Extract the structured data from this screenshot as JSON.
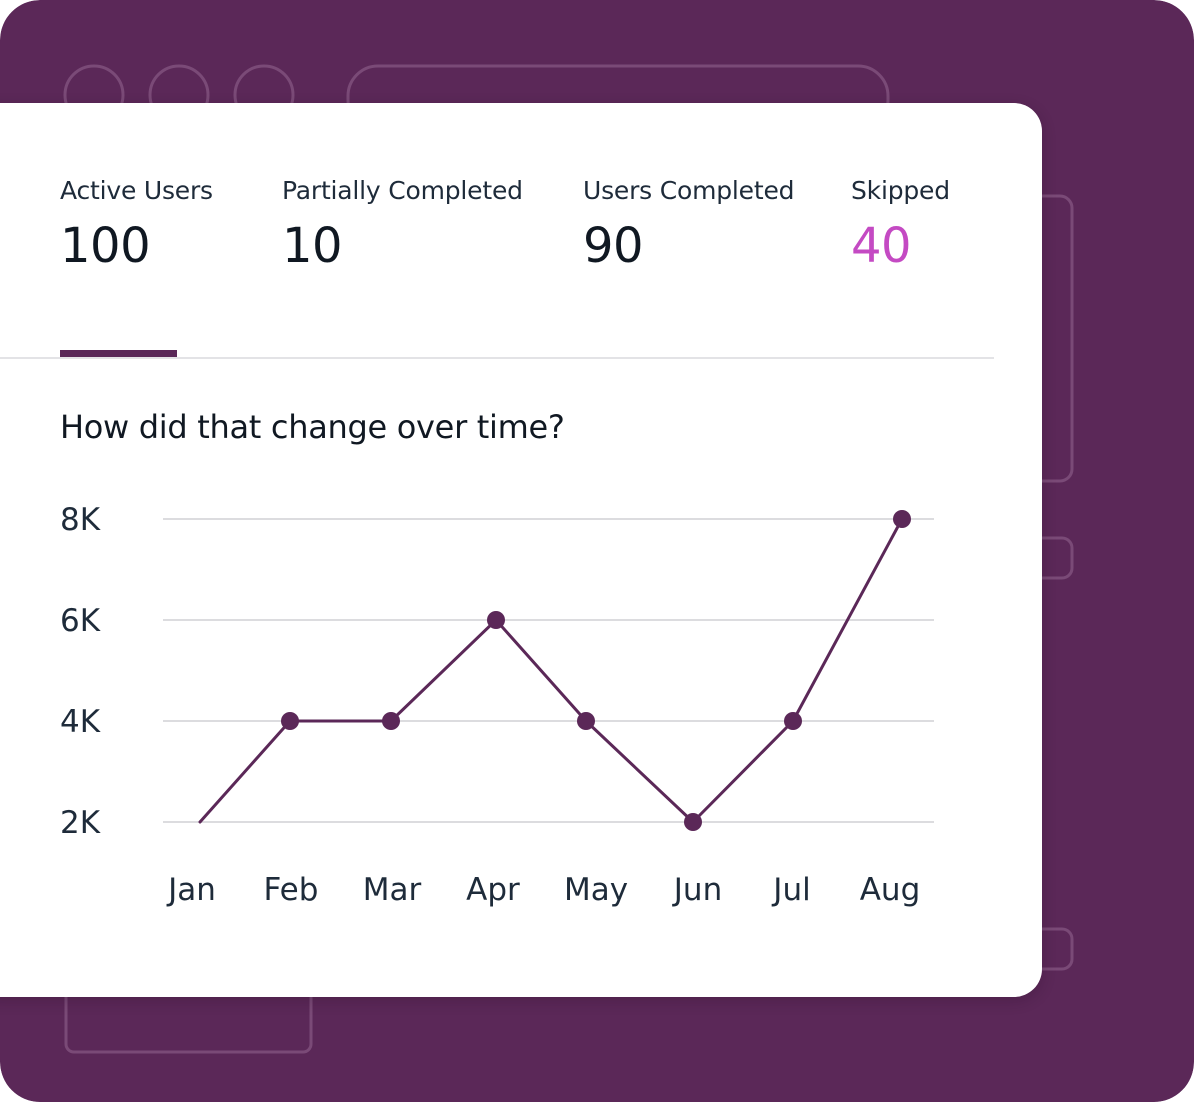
{
  "colors": {
    "background": "#5b2858",
    "accent": "#5b2858",
    "highlight": "#c44ac3",
    "text": "#101822"
  },
  "stats": [
    {
      "label": "Active Users",
      "value": "100"
    },
    {
      "label": "Partially Completed",
      "value": "10"
    },
    {
      "label": "Users Completed",
      "value": "90"
    },
    {
      "label": "Skipped",
      "value": "40"
    }
  ],
  "question": "How did that change over time?",
  "chart_data": {
    "type": "line",
    "title": "How did that change over time?",
    "xlabel": "",
    "ylabel": "",
    "categories": [
      "Jan",
      "Feb",
      "Mar",
      "Apr",
      "May",
      "Jun",
      "Jul",
      "Aug"
    ],
    "values": [
      2000,
      4000,
      4000,
      6000,
      4000,
      2000,
      4000,
      8000
    ],
    "ylim": [
      2000,
      8000
    ],
    "y_ticks": [
      2000,
      4000,
      6000,
      8000
    ],
    "y_tick_labels": [
      "2K",
      "4K",
      "6K",
      "8K"
    ],
    "grid": true,
    "marker_on_first_point": false,
    "line_color": "#5b2858"
  }
}
